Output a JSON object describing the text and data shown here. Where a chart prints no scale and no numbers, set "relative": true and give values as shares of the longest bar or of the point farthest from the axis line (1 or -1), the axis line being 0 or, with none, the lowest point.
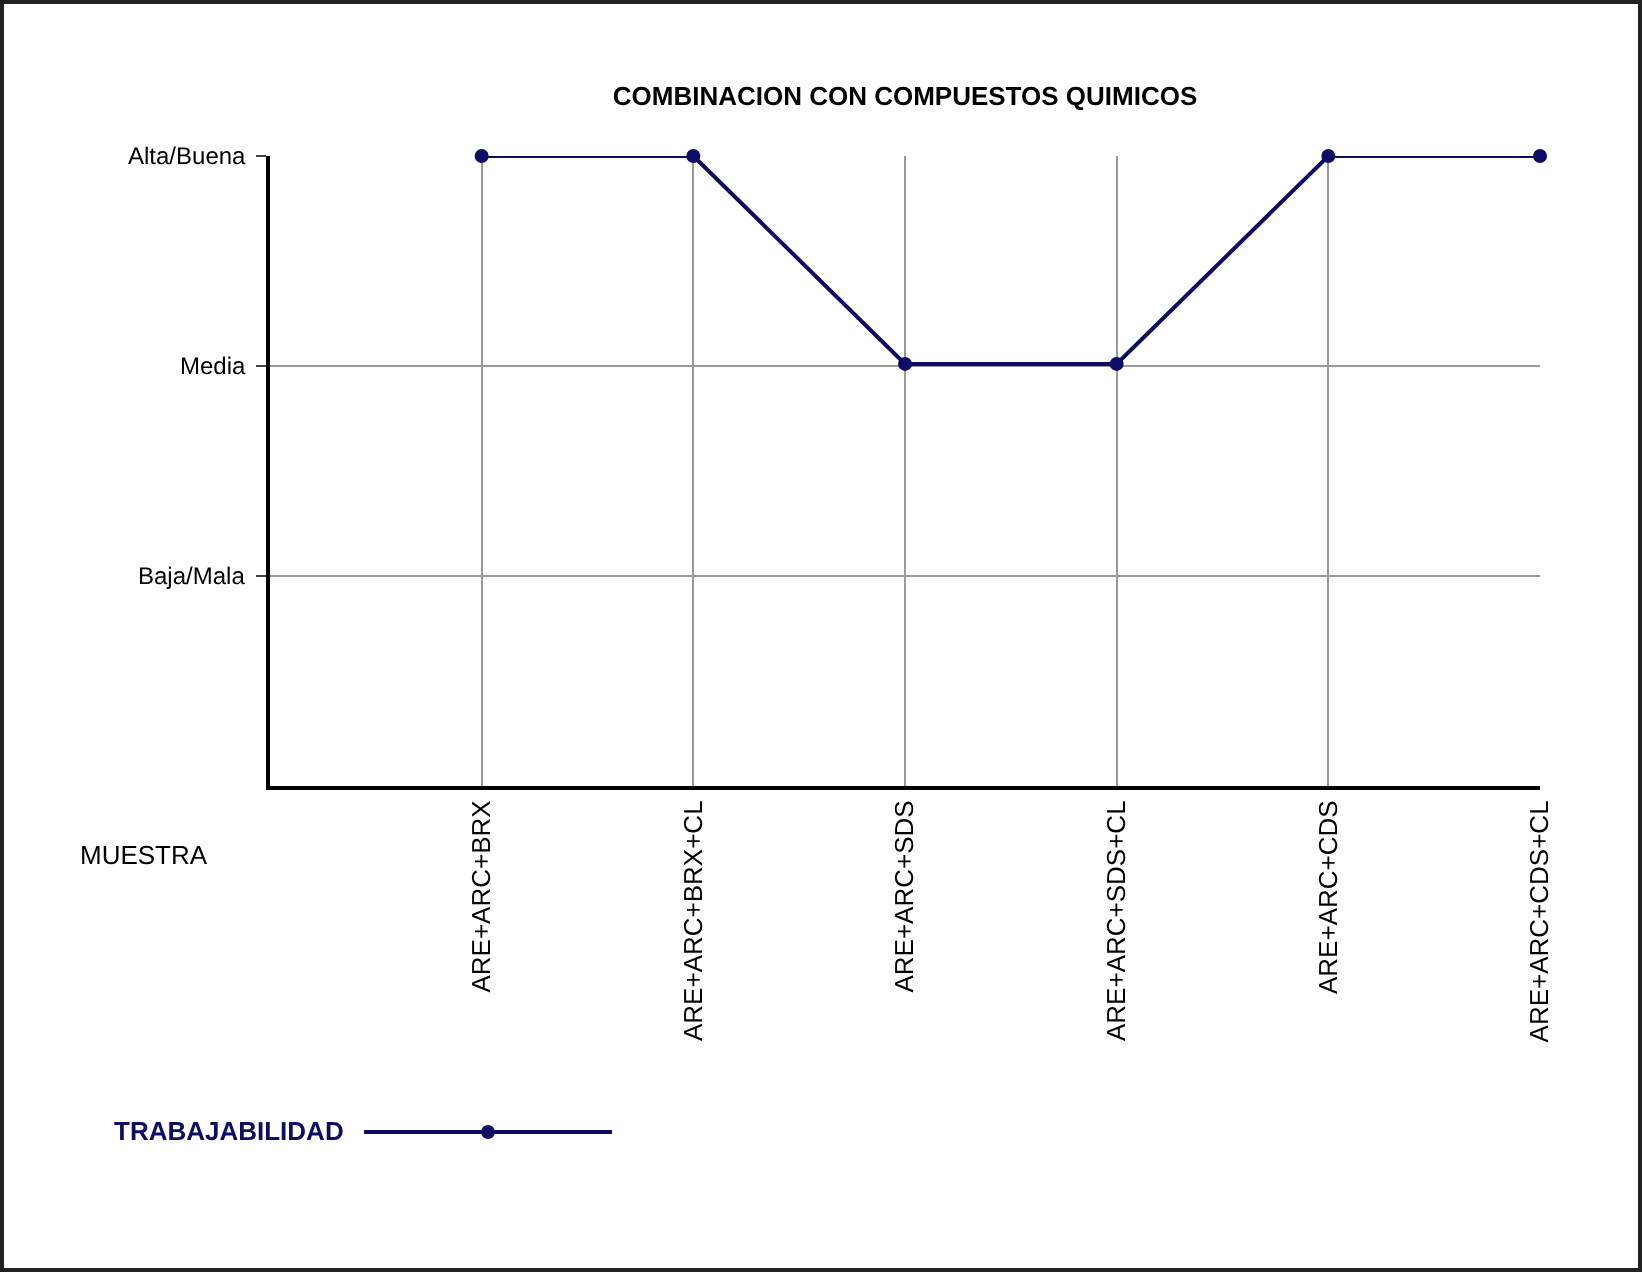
{
  "chart_data": {
    "type": "line",
    "title": "COMBINACION CON COMPUESTOS QUIMICOS",
    "xlabel": "MUESTRA",
    "categories": [
      "ARE+ARC+BRX",
      "ARE+ARC+BRX+CL",
      "ARE+ARC+SDS",
      "ARE+ARC+SDS+CL",
      "ARE+ARC+CDS",
      "ARE+ARC+CDS+CL"
    ],
    "series": [
      {
        "name": "TRABAJABILIDAD",
        "color": "#0d0d66",
        "values": [
          1,
          1,
          0.67,
          0.67,
          1,
          1
        ]
      }
    ],
    "relative": true,
    "annotations": [
      "Alta/Buena",
      "Media",
      "Baja/Mala"
    ],
    "grid": true,
    "legend": "bottom left",
    "marker": "circle",
    "line_style": "solid"
  }
}
